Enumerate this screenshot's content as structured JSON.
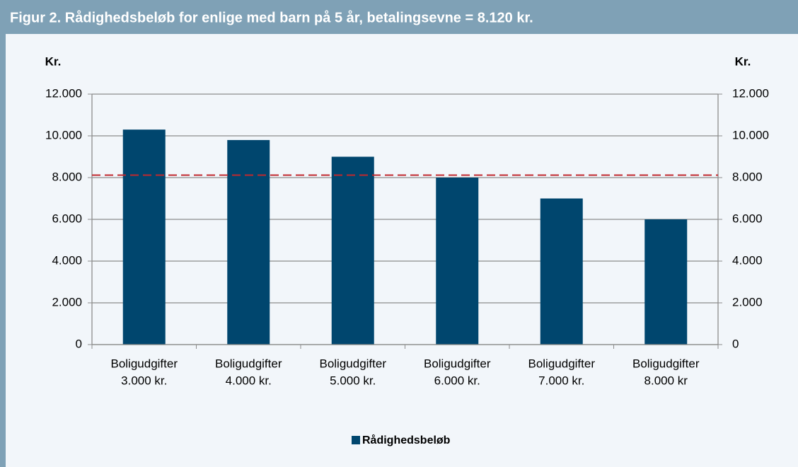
{
  "chart_data": {
    "type": "bar",
    "title": "Figur 2. Rådighedsbeløb for enlige med barn på 5 år, betalingsevne = 8.120 kr.",
    "ylabel": "Kr.",
    "y2label": "Kr.",
    "categories": [
      [
        "Boligudgifter",
        "3.000 kr."
      ],
      [
        "Boligudgifter",
        "4.000 kr."
      ],
      [
        "Boligudgifter",
        "5.000 kr."
      ],
      [
        "Boligudgifter",
        "6.000 kr."
      ],
      [
        "Boligudgifter",
        "7.000 kr."
      ],
      [
        "Boligudgifter",
        "8.000 kr"
      ]
    ],
    "series": [
      {
        "name": "Rådighedsbeløb",
        "color": "#00466e",
        "values": [
          10300,
          9800,
          9000,
          8000,
          7000,
          6000
        ]
      }
    ],
    "reference_line": {
      "value": 8120,
      "color": "#c0282d"
    },
    "ylim": [
      0,
      12000
    ],
    "yticks": [
      0,
      {
        "value": 2000,
        "label": "2.000"
      },
      {
        "value": 4000,
        "label": "4.000"
      },
      {
        "value": 6000,
        "label": "6.000"
      },
      {
        "value": 8000,
        "label": "8.000"
      },
      {
        "value": 10000,
        "label": "10.000"
      },
      {
        "value": 12000,
        "label": "12.000"
      }
    ],
    "y2lim": [
      0,
      12000
    ],
    "y2ticks": [
      0,
      {
        "value": 2000,
        "label": "2.000"
      },
      {
        "value": 4000,
        "label": "4.000"
      },
      {
        "value": 6000,
        "label": "6.000"
      },
      {
        "value": 8000,
        "label": "8.000"
      },
      {
        "value": 10000,
        "label": "10.000"
      },
      {
        "value": 12000,
        "label": "12.000"
      }
    ],
    "grid": true,
    "legend": "bottom"
  }
}
